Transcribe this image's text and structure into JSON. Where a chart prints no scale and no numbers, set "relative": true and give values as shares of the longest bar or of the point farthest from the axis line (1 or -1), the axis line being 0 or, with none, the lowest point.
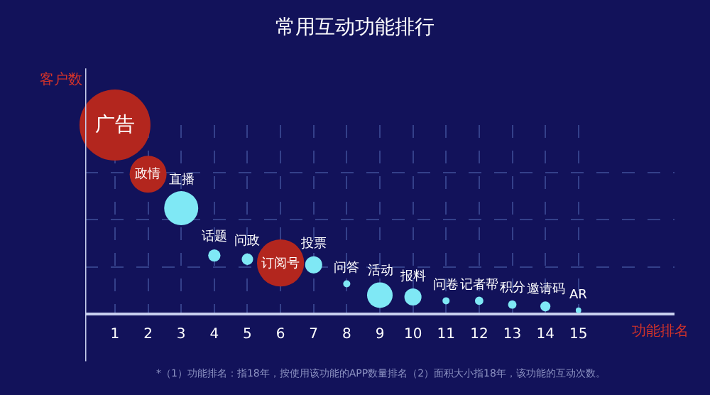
{
  "chart_data": {
    "type": "bubble",
    "title": "常用互动功能排行",
    "xlabel": "功能排名",
    "ylabel": "客户数",
    "relative": true,
    "x": [
      1,
      2,
      3,
      4,
      5,
      6,
      7,
      8,
      9,
      10,
      11,
      12,
      13,
      14,
      15
    ],
    "xlim": [
      0.1,
      17.9
    ],
    "xticks": [
      1,
      2,
      3,
      4,
      5,
      6,
      7,
      8,
      9,
      10,
      11,
      12,
      13,
      14,
      15
    ],
    "series": [
      {
        "colors": [
          "#b3261e",
          "#b3261e",
          "#7fe8f5",
          "#7fe8f5",
          "#7fe8f5",
          "#b3261e",
          "#7fe8f5",
          "#7fe8f5",
          "#7fe8f5",
          "#7fe8f5",
          "#7fe8f5",
          "#7fe8f5",
          "#7fe8f5",
          "#7fe8f5",
          "#7fe8f5"
        ],
        "values": [
          1,
          0.74,
          0.56,
          0.31,
          0.29,
          0.27,
          0.26,
          0.16,
          0.1,
          0.09,
          0.07,
          0.07,
          0.05,
          0.04,
          0.02
        ],
        "sizes": [
          1,
          0.27,
          0.23,
          0.03,
          0.026,
          0.44,
          0.058,
          0.01,
          0.13,
          0.058,
          0.01,
          0.014,
          0.014,
          0.02,
          0.006
        ]
      }
    ],
    "grid": true,
    "annotations": [
      {
        "text": "广告",
        "x": 1,
        "y": 1
      },
      {
        "text": "政情",
        "x": 2,
        "y": 0.74
      },
      {
        "text": "直播",
        "x": 3,
        "y": 0.56
      },
      {
        "text": "话题",
        "x": 4,
        "y": 0.31
      },
      {
        "text": "问政",
        "x": 5,
        "y": 0.29
      },
      {
        "text": "订阅号",
        "x": 6,
        "y": 0.27
      },
      {
        "text": "投票",
        "x": 7,
        "y": 0.26
      },
      {
        "text": "问答",
        "x": 8,
        "y": 0.16
      },
      {
        "text": "活动",
        "x": 9,
        "y": 0.1
      },
      {
        "text": "报料",
        "x": 10,
        "y": 0.09
      },
      {
        "text": "问卷",
        "x": 11,
        "y": 0.07
      },
      {
        "text": "记者帮",
        "x": 12,
        "y": 0.07
      },
      {
        "text": "积分",
        "x": 13,
        "y": 0.05
      },
      {
        "text": "邀请码",
        "x": 14,
        "y": 0.04
      },
      {
        "text": "AR",
        "x": 15,
        "y": 0.02
      },
      "*（1）功能排名：指18年，按使用该功能的APP数量排名（2）面积大小指18年，该功能的互动次数。"
    ]
  }
}
